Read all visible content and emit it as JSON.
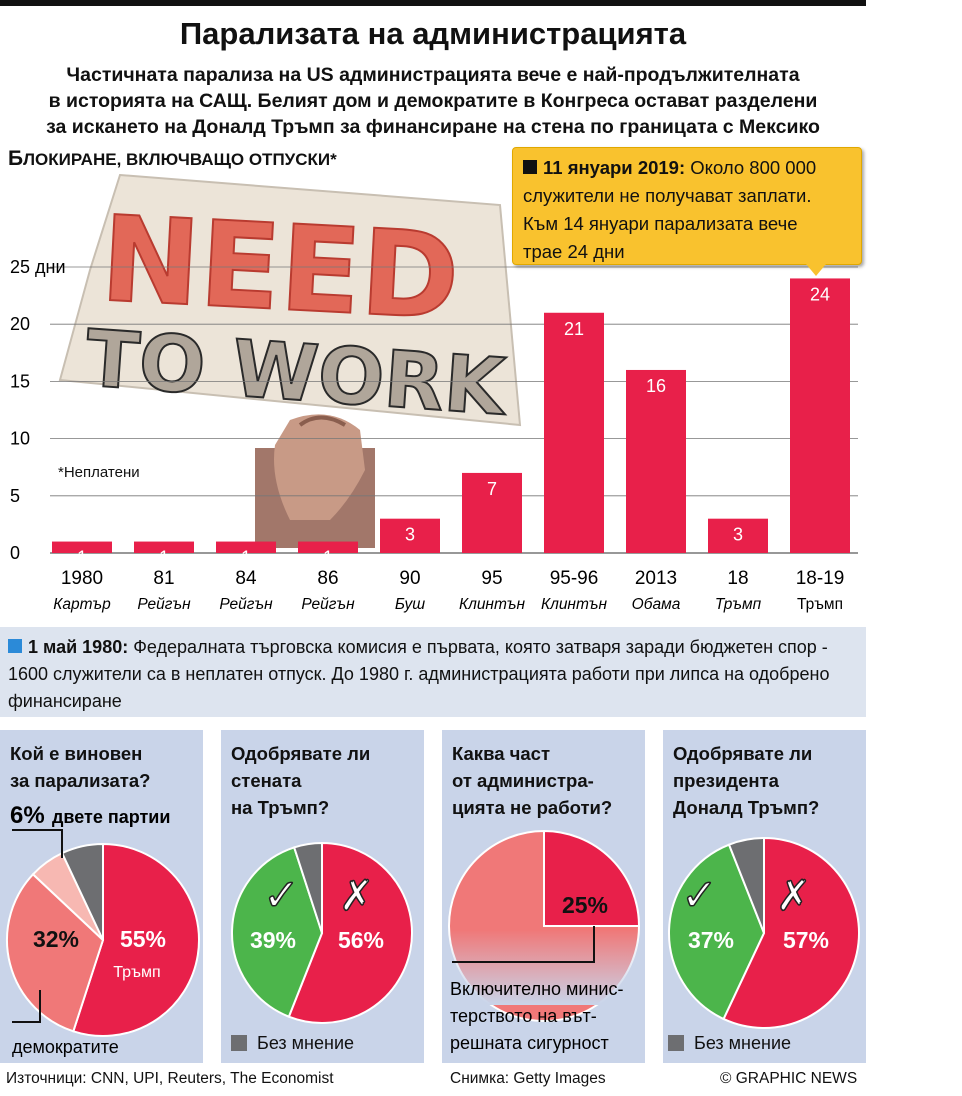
{
  "title": "Парализата на администрацията",
  "subtitle": "Частичната парализа на US администрацията вече е най-продължителната\nв историята на САЩ. Белият дом и демократите в Конгреса остават разделени\nза искането на Доналд Тръмп за финансиране на стена по границата с Мексико",
  "section_title_cap": "Б",
  "section_title_rest": "ЛОКИРАНЕ, ВКЛЮЧВАЩО ОТПУСКИ*",
  "photo_text": {
    "line1": "NEED",
    "line2": "TO WORK"
  },
  "tooltip": {
    "date": "11 януари 2019:",
    "text_line1": "Около 800 000",
    "text_line2": "служители не получават заплати.",
    "text_line3": "Към 14 януари парализата вече",
    "text_line4": "трае 24 дни"
  },
  "note": "*Неплатени",
  "info": {
    "date": "1 май 1980:",
    "text": "Федералната търговска комисия е първата, която затваря заради бюджетен спор - 1600 служители са в неплатен отпуск. До 1980 г. администрацията работи при липса на одобрено финансиране"
  },
  "colors": {
    "bar": "#e8204a",
    "pie_red": "#e8204a",
    "pie_salmon": "#f07878",
    "pie_pink": "#f7b8b2",
    "pie_gray": "#6d6e71",
    "pie_green": "#4cb54b",
    "tooltip": "#f9c22e",
    "panel": "#c9d4e9",
    "info_panel": "#dde4ef"
  },
  "chart_data": [
    {
      "type": "bar",
      "title": "Блокиране, включващо отпуски*",
      "ylabel": "дни",
      "ylim": [
        0,
        25
      ],
      "yticks": [
        "0",
        "5",
        "10",
        "15",
        "20",
        "25 дни"
      ],
      "categories": [
        "1980",
        "81",
        "84",
        "86",
        "90",
        "95",
        "95-96",
        "2013",
        "18",
        "18-19"
      ],
      "presidents": [
        "Картър",
        "Рейгън",
        "Рейгън",
        "Рейгън",
        "Буш",
        "Клинтън",
        "Клинтън",
        "Обама",
        "Тръмп",
        "Тръмп"
      ],
      "values": [
        1,
        1,
        1,
        1,
        3,
        7,
        21,
        16,
        3,
        24
      ],
      "value_labels": [
        "1",
        "1",
        "1",
        "1",
        "3",
        "7",
        "21",
        "16",
        "3",
        "24"
      ],
      "grid": true
    },
    {
      "type": "pie",
      "title": "Кой е виновен за парализата?",
      "slices": [
        {
          "label": "Тръмп",
          "value": 55,
          "text": "55%"
        },
        {
          "label": "демократите",
          "value": 32,
          "text": "32%"
        },
        {
          "label": "двете партии",
          "value": 6,
          "text": "6%"
        },
        {
          "label": "",
          "value": 7,
          "text": ""
        }
      ]
    },
    {
      "type": "pie",
      "title": "Одобрявате ли стената на Тръмп?",
      "slices": [
        {
          "label": "не",
          "value": 56,
          "text": "56%"
        },
        {
          "label": "да",
          "value": 39,
          "text": "39%"
        },
        {
          "label": "Без мнение",
          "value": 5,
          "text": ""
        }
      ]
    },
    {
      "type": "pie",
      "title": "Каква част от администрацията не работи?",
      "slices": [
        {
          "label": "Включително министерството на вътрешната сигурност",
          "value": 25,
          "text": "25%"
        },
        {
          "label": "",
          "value": 75,
          "text": ""
        }
      ]
    },
    {
      "type": "pie",
      "title": "Одобрявате ли президента Доналд Тръмп?",
      "slices": [
        {
          "label": "не",
          "value": 57,
          "text": "57%"
        },
        {
          "label": "да",
          "value": 37,
          "text": "37%"
        },
        {
          "label": "Без мнение",
          "value": 6,
          "text": ""
        }
      ]
    }
  ],
  "cards": [
    {
      "title": "Кой е виновен\nза парализата?",
      "callout_pct": "6%",
      "callout_text": "двете партии",
      "label_democrats": "демократите",
      "sub_trump": "Тръмп"
    },
    {
      "title": "Одобрявате ли\nстената\nна Тръмп?",
      "legend": "Без мнение"
    },
    {
      "title": "Каква част\nот администра-\nцията не работи?",
      "note_line1": "Включително минис-",
      "note_line2": "терството на вът-",
      "note_line3": "решната сигурност"
    },
    {
      "title": "Одобрявате ли\nпрезидента\nДоналд Тръмп?",
      "legend": "Без мнение"
    }
  ],
  "footer": {
    "sources": "Източници:  CNN, UPI, Reuters, The Economist",
    "photo": "Снимка: Getty Images",
    "credit": "© GRAPHIC NEWS"
  }
}
